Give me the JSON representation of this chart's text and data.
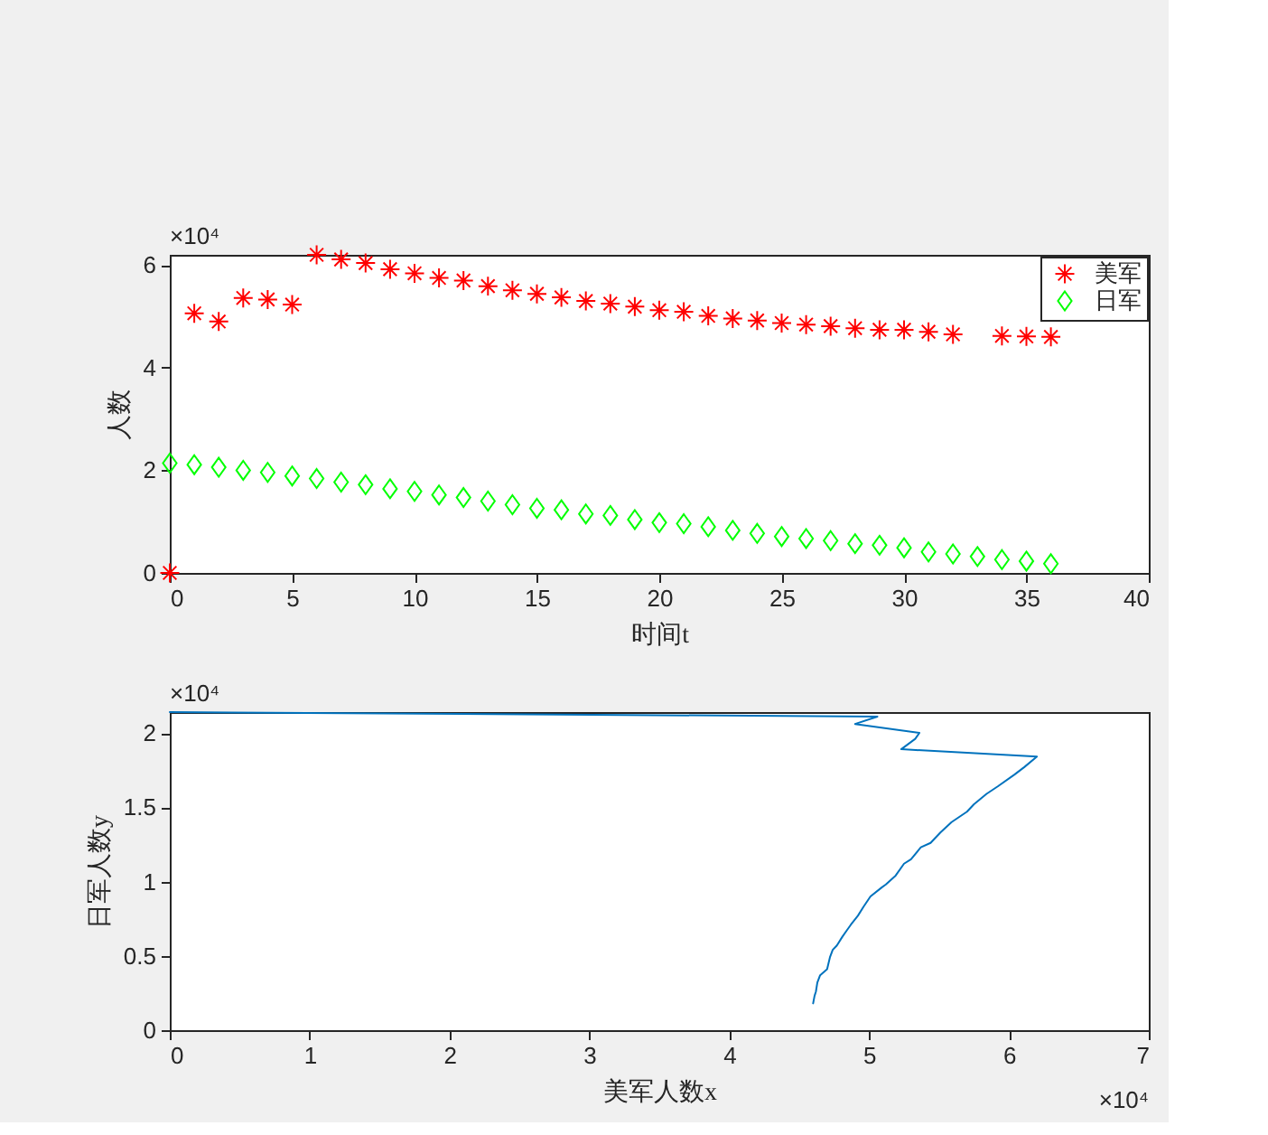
{
  "chart_data": [
    {
      "type": "scatter",
      "xlabel": "时间t",
      "ylabel": "人数",
      "annotations": [
        "×10⁴"
      ],
      "x": [
        0,
        1,
        2,
        3,
        4,
        5,
        6,
        7,
        8,
        9,
        10,
        11,
        12,
        13,
        14,
        15,
        16,
        17,
        18,
        19,
        20,
        21,
        22,
        23,
        24,
        25,
        26,
        27,
        28,
        29,
        30,
        31,
        32,
        33,
        34,
        35,
        36
      ],
      "xlim": [
        0,
        40
      ],
      "xticks": [
        0,
        5,
        10,
        15,
        20,
        25,
        30,
        35,
        40
      ],
      "ylim": [
        0,
        6.2
      ],
      "yticks": [
        0,
        2,
        4,
        6
      ],
      "legend": "top right",
      "series": [
        {
          "name": "美军",
          "color": "#ff0000",
          "marker": "cross",
          "values": [
            0,
            5.06,
            4.9,
            5.36,
            5.33,
            5.23,
            6.2,
            6.11,
            6.04,
            5.92,
            5.84,
            5.75,
            5.7,
            5.59,
            5.51,
            5.44,
            5.37,
            5.3,
            5.25,
            5.19,
            5.12,
            5.09,
            5.01,
            4.96,
            4.92,
            4.87,
            4.84,
            4.81,
            4.77,
            4.74,
            4.74,
            4.7,
            4.65,
            null,
            4.62,
            4.61,
            4.6
          ]
        },
        {
          "name": "日军",
          "color": "#00ff00",
          "marker": "diamond",
          "values": [
            2.14,
            2.11,
            2.06,
            2.0,
            1.96,
            1.89,
            1.84,
            1.77,
            1.72,
            1.64,
            1.59,
            1.52,
            1.47,
            1.4,
            1.33,
            1.26,
            1.23,
            1.15,
            1.12,
            1.04,
            0.98,
            0.96,
            0.9,
            0.83,
            0.77,
            0.71,
            0.67,
            0.63,
            0.57,
            0.54,
            0.49,
            0.41,
            0.37,
            0.32,
            0.26,
            0.23,
            0.18
          ]
        }
      ]
    },
    {
      "type": "line",
      "xlabel": "美军人数x",
      "ylabel": "日军人数y",
      "annotations": [
        "×10⁴",
        "×10⁴"
      ],
      "xlim": [
        0,
        7
      ],
      "xticks": [
        0,
        1,
        2,
        3,
        4,
        5,
        6,
        7
      ],
      "ylim": [
        0,
        2.14
      ],
      "yticks": [
        0,
        0.5,
        1,
        1.5,
        2
      ],
      "series": [
        {
          "color": "#0072bd",
          "x": [
            0,
            5.06,
            4.9,
            5.36,
            5.33,
            5.23,
            6.2,
            6.11,
            6.04,
            5.92,
            5.84,
            5.75,
            5.7,
            5.59,
            5.51,
            5.44,
            5.37,
            5.3,
            5.25,
            5.19,
            5.12,
            5.09,
            5.01,
            4.96,
            4.92,
            4.87,
            4.84,
            4.81,
            4.77,
            4.74,
            4.72,
            4.7,
            4.65,
            4.63,
            4.62,
            4.61,
            4.6
          ],
          "values": [
            2.14,
            2.11,
            2.06,
            2.0,
            1.96,
            1.89,
            1.84,
            1.77,
            1.72,
            1.64,
            1.59,
            1.52,
            1.47,
            1.4,
            1.33,
            1.26,
            1.23,
            1.15,
            1.12,
            1.04,
            0.98,
            0.96,
            0.9,
            0.83,
            0.77,
            0.71,
            0.67,
            0.63,
            0.57,
            0.54,
            0.49,
            0.41,
            0.37,
            0.32,
            0.26,
            0.23,
            0.18
          ]
        }
      ]
    }
  ]
}
